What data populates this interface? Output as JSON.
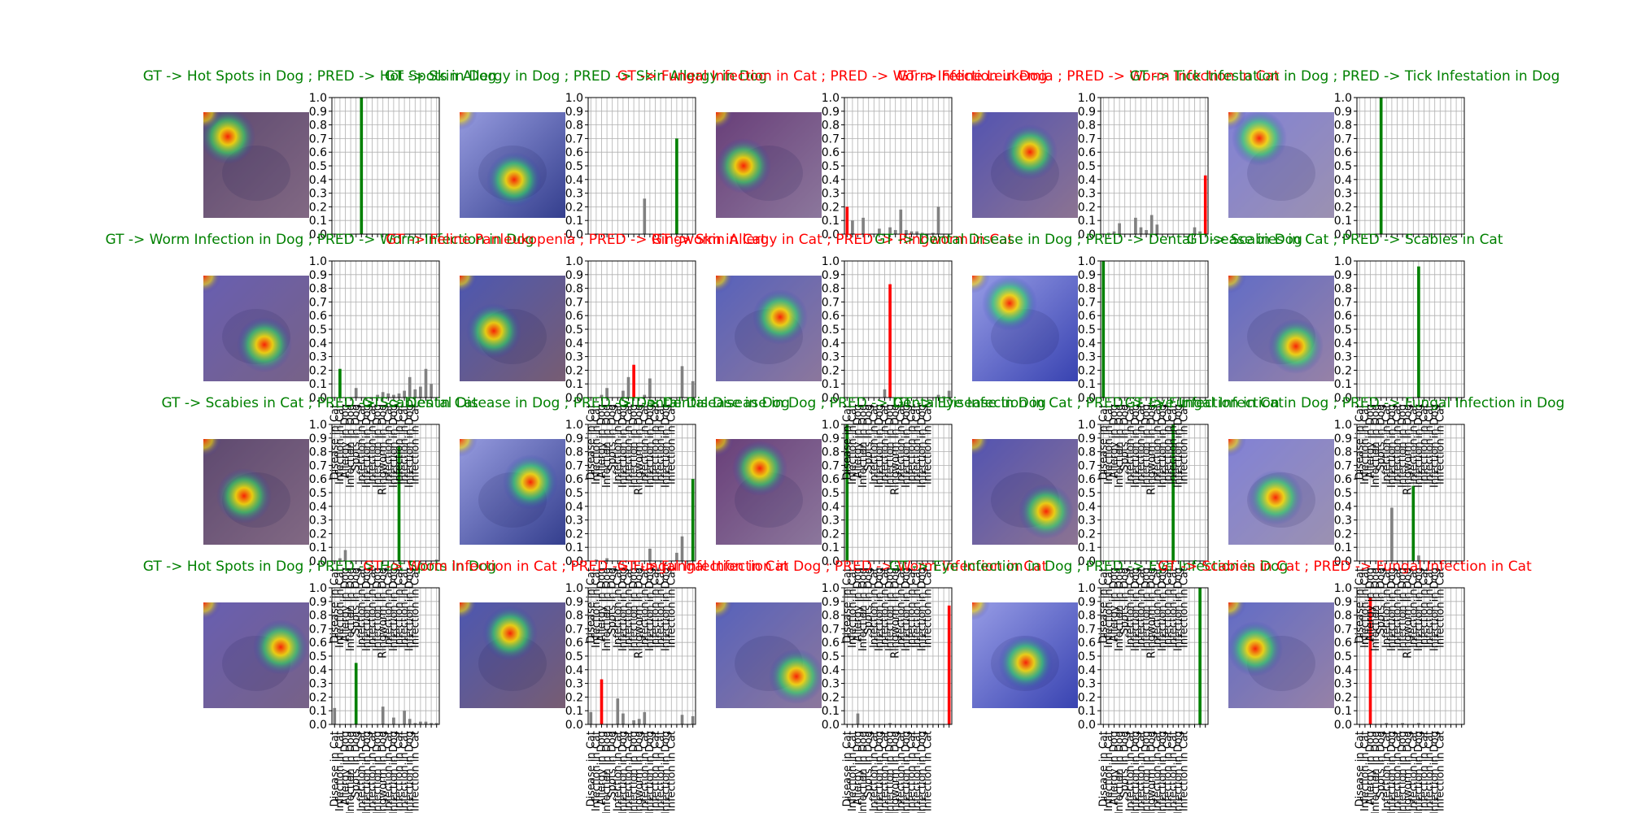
{
  "colors": {
    "correct": "#008000",
    "wrong": "#ff0000",
    "other": "#808080",
    "grid": "#b0b0b0"
  },
  "x_tick_labels_visible": [
    "Disease in Cat",
    "Infection in Cat",
    "Allergy in Dog",
    "Infection in Dog",
    "Spots in Dog",
    "Infection in Cat",
    "Infection in Dog",
    "Infection in Cat",
    "Infection in Dog",
    "Ringworm in Dog",
    "Infection in Cat",
    "Infection in Dog",
    "Infection in Cat",
    "Infection in Cat",
    "Infection in Dog",
    "Infection in Cat"
  ],
  "chart_data": [
    {
      "type": "bar",
      "title": "GT -> Hot Spots in Dog ; PRED -> Hot Spots in Dog",
      "correct": true,
      "image": "dog-skin-heatmap",
      "values": [
        0,
        0,
        0,
        0,
        0,
        1.0,
        0,
        0,
        0,
        0,
        0,
        0,
        0,
        0,
        0,
        0,
        0,
        0,
        0,
        0
      ],
      "highlight": 5,
      "ylim": [
        0,
        1
      ],
      "show_x_labels": false
    },
    {
      "type": "bar",
      "title": "GT -> Skin Allergy in Dog ; PRED -> Skin Allergy in Dog",
      "correct": true,
      "image": "dog-allergy-infographic",
      "values": [
        0,
        0,
        0,
        0,
        0,
        0,
        0,
        0,
        0,
        0,
        0.26,
        0,
        0,
        0,
        0,
        0,
        0.7,
        0,
        0,
        0
      ],
      "highlight": 16,
      "ylim": [
        0,
        1
      ],
      "show_x_labels": false
    },
    {
      "type": "bar",
      "title": "GT -> Fungal Infection in Cat ; PRED -> Worm Infection in Dog",
      "correct": false,
      "image": "person-with-cat",
      "values": [
        0.2,
        0.1,
        0,
        0.12,
        0,
        0,
        0.04,
        0,
        0.05,
        0.03,
        0.18,
        0.03,
        0.02,
        0.02,
        0.01,
        0,
        0.01,
        0.2,
        0,
        0
      ],
      "highlight": 0,
      "ylim": [
        0,
        1
      ],
      "show_x_labels": false
    },
    {
      "type": "bar",
      "title": "GT -> Feline Leukemia ; PRED -> Worm Infection in Cat",
      "correct": false,
      "image": "cat-on-lap",
      "values": [
        0,
        0.01,
        0.02,
        0.08,
        0,
        0,
        0.12,
        0.05,
        0.03,
        0.14,
        0.07,
        0,
        0,
        0,
        0,
        0,
        0,
        0.05,
        0.02,
        0.43
      ],
      "highlight": 19,
      "ylim": [
        0,
        1
      ],
      "show_x_labels": false
    },
    {
      "type": "bar",
      "title": "GT -> Tick Infestation in Dog ; PRED -> Tick Infestation in Dog",
      "correct": true,
      "image": "puppy-heatmap",
      "values": [
        0,
        0,
        0,
        0,
        1.0,
        0,
        0,
        0,
        0,
        0,
        0,
        0,
        0,
        0,
        0,
        0,
        0,
        0,
        0,
        0
      ],
      "highlight": 4,
      "ylim": [
        0,
        1
      ],
      "show_x_labels": false
    },
    {
      "type": "bar",
      "title": "GT -> Worm Infection in Dog ; PRED -> Worm Infection in Dog",
      "correct": true,
      "image": "worms-in-dogs-banner",
      "values": [
        0,
        0.21,
        0,
        0,
        0.07,
        0,
        0,
        0,
        0.02,
        0.04,
        0.03,
        0.02,
        0.03,
        0.05,
        0.15,
        0.06,
        0.08,
        0.21,
        0.1,
        0
      ],
      "highlight": 1,
      "ylim": [
        0,
        1
      ],
      "show_x_labels": true
    },
    {
      "type": "bar",
      "title": "GT -> Feline Panleukopenia ; PRED -> Ringworm in Cat",
      "correct": false,
      "image": "tabby-cat",
      "values": [
        0,
        0,
        0.02,
        0.07,
        0,
        0,
        0.05,
        0.15,
        0.24,
        0,
        0.02,
        0.14,
        0,
        0,
        0,
        0,
        0,
        0.23,
        0,
        0.12
      ],
      "highlight": 8,
      "ylim": [
        0,
        1
      ],
      "show_x_labels": true
    },
    {
      "type": "bar",
      "title": "GT -> Skin Allergy in Cat ; PRED -> Ringworm in Cat",
      "correct": false,
      "image": "cat-closeup",
      "values": [
        0,
        0,
        0,
        0,
        0,
        0,
        0,
        0.06,
        0.83,
        0,
        0,
        0,
        0,
        0,
        0,
        0,
        0,
        0.02,
        0.01,
        0.05
      ],
      "highlight": 8,
      "ylim": [
        0,
        1
      ],
      "show_x_labels": true
    },
    {
      "type": "bar",
      "title": "GT -> Dental Disease in Dog ; PRED -> Dental Disease in Dog",
      "correct": true,
      "image": "dog-teeth",
      "values": [
        1.0,
        0,
        0,
        0,
        0,
        0,
        0,
        0,
        0,
        0,
        0,
        0,
        0,
        0,
        0,
        0,
        0,
        0,
        0,
        0
      ],
      "highlight": 0,
      "ylim": [
        0,
        1
      ],
      "show_x_labels": true
    },
    {
      "type": "bar",
      "title": "GT -> Scabies in Cat ; PRED -> Scabies in Cat",
      "correct": true,
      "image": "cat-lying",
      "values": [
        0,
        0,
        0,
        0,
        0,
        0,
        0,
        0,
        0,
        0,
        0,
        0.96,
        0,
        0,
        0,
        0,
        0,
        0,
        0,
        0
      ],
      "highlight": 11,
      "ylim": [
        0,
        1
      ],
      "show_x_labels": true
    },
    {
      "type": "bar",
      "title": "GT -> Scabies in Cat ; PRED -> Scabies in Cat",
      "correct": true,
      "image": "kitten-adoption-banner",
      "values": [
        0,
        0.02,
        0.08,
        0,
        0,
        0,
        0,
        0,
        0,
        0,
        0,
        0,
        0.84,
        0,
        0,
        0,
        0,
        0,
        0,
        0.01
      ],
      "highlight": 12,
      "ylim": [
        0,
        1
      ],
      "show_x_labels": true
    },
    {
      "type": "bar",
      "title": "GT -> Dental Disease in Dog ; PRED -> Dental Disease in Dog",
      "correct": true,
      "image": "hands-holding-pet",
      "values": [
        0,
        0.01,
        0,
        0.02,
        0,
        0,
        0,
        0,
        0,
        0,
        0,
        0.09,
        0,
        0,
        0,
        0,
        0.06,
        0.18,
        0,
        0.6
      ],
      "highlight": 19,
      "ylim": [
        0,
        1
      ],
      "show_x_labels": true
    },
    {
      "type": "bar",
      "title": "GT -> Dental Disease in Dog ; PRED -> Dental Disease in Dog",
      "correct": true,
      "image": "dental-disease-infographic",
      "values": [
        1.0,
        0,
        0,
        0,
        0,
        0,
        0,
        0,
        0,
        0,
        0,
        0,
        0,
        0,
        0,
        0,
        0,
        0,
        0,
        0
      ],
      "highlight": 0,
      "ylim": [
        0,
        1
      ],
      "show_x_labels": true
    },
    {
      "type": "bar",
      "title": "GT -> Eye Infection in Cat ; PRED -> Eye Infection in Cat",
      "correct": true,
      "image": "cat-eye-exam",
      "values": [
        0,
        0,
        0,
        0,
        0,
        0,
        0,
        0,
        0,
        0,
        0,
        0,
        0,
        1.0,
        0,
        0,
        0,
        0,
        0,
        0
      ],
      "highlight": 13,
      "ylim": [
        0,
        1
      ],
      "show_x_labels": true
    },
    {
      "type": "bar",
      "title": "GT -> Fungal Infection in Dog ; PRED -> Fungal Infection in Dog",
      "correct": true,
      "image": "yeast-infection-banner",
      "values": [
        0,
        0,
        0,
        0,
        0,
        0,
        0.39,
        0,
        0,
        0,
        0.55,
        0.04,
        0,
        0,
        0,
        0,
        0,
        0,
        0,
        0
      ],
      "highlight": 10,
      "ylim": [
        0,
        1
      ],
      "show_x_labels": true
    },
    {
      "type": "bar",
      "title": "GT -> Hot Spots in Dog ; PRED -> Hot Spots in Dog",
      "correct": true,
      "image": "dog-hotspot",
      "values": [
        0.12,
        0,
        0,
        0,
        0.45,
        0,
        0,
        0,
        0,
        0.13,
        0,
        0.05,
        0,
        0.1,
        0.04,
        0.01,
        0.02,
        0.02,
        0.01,
        0.01
      ],
      "highlight": 4,
      "ylim": [
        0,
        1
      ],
      "show_x_labels": true
    },
    {
      "type": "bar",
      "title": "GT -> Worm Infection in Cat ; PRED -> Fungal Infection in Cat",
      "correct": false,
      "image": "cat-worms-diagram",
      "values": [
        0.09,
        0,
        0.33,
        0,
        0,
        0.19,
        0.08,
        0,
        0.03,
        0.04,
        0.09,
        0,
        0,
        0,
        0,
        0,
        0,
        0.07,
        0,
        0.06
      ],
      "highlight": 2,
      "ylim": [
        0,
        1
      ],
      "show_x_labels": true
    },
    {
      "type": "bar",
      "title": "GT -> Fungal Infection in Dog ; PRED -> Worm Infection in Cat",
      "correct": false,
      "image": "red-worms",
      "values": [
        0,
        0,
        0.08,
        0,
        0,
        0,
        0,
        0,
        0.01,
        0,
        0,
        0,
        0,
        0,
        0,
        0,
        0,
        0,
        0,
        0.87
      ],
      "highlight": 19,
      "ylim": [
        0,
        1
      ],
      "show_x_labels": true
    },
    {
      "type": "bar",
      "title": "GT -> Eye Infection in Dog ; PRED -> Eye Infection in Dog",
      "correct": true,
      "image": "dog-eye-closeup",
      "values": [
        0,
        0,
        0,
        0,
        0,
        0,
        0,
        0,
        0,
        0,
        0,
        0,
        0,
        0,
        0,
        0,
        0,
        0,
        1.0,
        0
      ],
      "highlight": 18,
      "ylim": [
        0,
        1
      ],
      "show_x_labels": true
    },
    {
      "type": "bar",
      "title": "GT -> Scabies in Cat ; PRED -> Fungal Infection in Cat",
      "correct": false,
      "image": "cat-scratching",
      "values": [
        0,
        0,
        0.93,
        0,
        0,
        0.01,
        0,
        0,
        0.01,
        0,
        0,
        0.01,
        0,
        0,
        0,
        0,
        0,
        0,
        0,
        0
      ],
      "highlight": 2,
      "ylim": [
        0,
        1
      ],
      "show_x_labels": true
    }
  ]
}
